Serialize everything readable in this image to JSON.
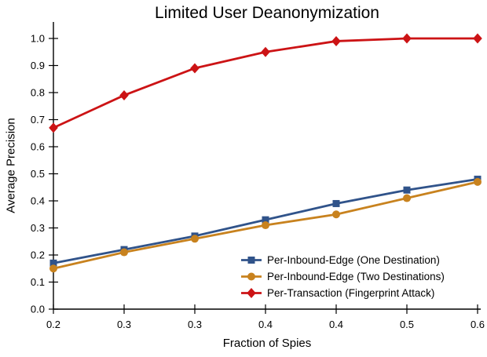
{
  "page": {
    "background": "#ffffff"
  },
  "chart_data": {
    "type": "line",
    "title": "Limited User Deanonymization",
    "xlabel": "Fraction of Spies",
    "ylabel": "Average Precision",
    "x_tick_labels": [
      "0.2",
      "0.3",
      "0.3",
      "0.4",
      "0.4",
      "0.5",
      "0.6"
    ],
    "x": [
      0.2,
      0.26,
      0.32,
      0.38,
      0.44,
      0.5,
      0.56
    ],
    "y_tick_labels": [
      "0.0",
      "0.1",
      "0.2",
      "0.3",
      "0.4",
      "0.5",
      "0.6",
      "0.7",
      "0.8",
      "0.9",
      "1.0"
    ],
    "y_ticks": [
      0.0,
      0.1,
      0.2,
      0.3,
      0.4,
      0.5,
      0.6,
      0.7,
      0.8,
      0.9,
      1.0
    ],
    "ylim": [
      0.0,
      1.06
    ],
    "grid": false,
    "legend_position": "lower right",
    "series": [
      {
        "name": "Per-Inbound-Edge (One Destination)",
        "marker": "square",
        "color": "#30538A",
        "values": [
          0.17,
          0.22,
          0.27,
          0.33,
          0.39,
          0.44,
          0.48
        ]
      },
      {
        "name": "Per-Inbound-Edge (Two Destinations)",
        "marker": "circle",
        "color": "#C8821E",
        "values": [
          0.15,
          0.21,
          0.26,
          0.31,
          0.35,
          0.41,
          0.47
        ]
      },
      {
        "name": "Per-Transaction (Fingerprint Attack)",
        "marker": "diamond",
        "color": "#CC1315",
        "values": [
          0.67,
          0.79,
          0.89,
          0.95,
          0.99,
          1.0,
          1.0
        ]
      }
    ]
  }
}
